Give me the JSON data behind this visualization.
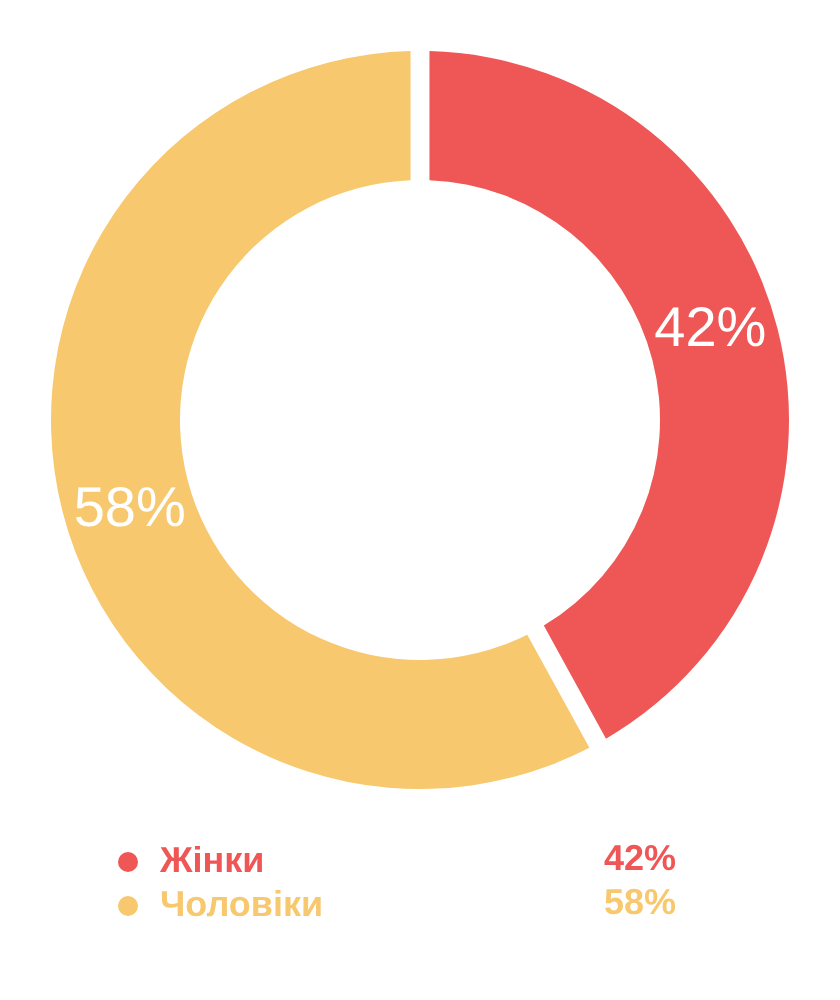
{
  "chart_data": {
    "type": "donut",
    "categories": [
      "Жінки",
      "Чоловіки"
    ],
    "values": [
      42,
      58
    ],
    "colors": [
      "#ef5656",
      "#f7c86d"
    ],
    "value_labels": [
      "42%",
      "58%"
    ],
    "legend": "bottom"
  }
}
